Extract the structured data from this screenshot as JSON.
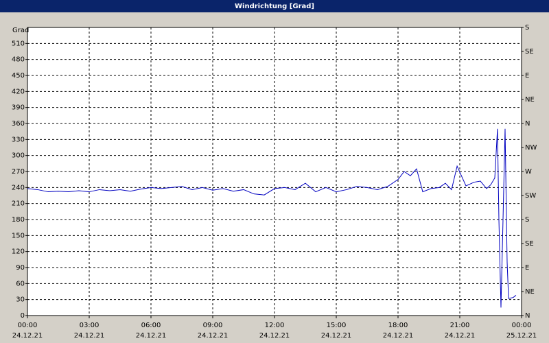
{
  "chart_data": {
    "type": "line",
    "title": "Windrichtung [Grad]",
    "y_axis_label": "Grad",
    "x": [
      0,
      0.5,
      1,
      1.5,
      2,
      2.5,
      3,
      3.5,
      4,
      4.5,
      5,
      5.5,
      6,
      6.5,
      7,
      7.5,
      8,
      8.5,
      9,
      9.5,
      10,
      10.5,
      11,
      11.5,
      12,
      12.5,
      13,
      13.5,
      14,
      14.5,
      15,
      15.5,
      16,
      16.5,
      17,
      17.5,
      18,
      18.3,
      18.6,
      18.9,
      19.2,
      19.6,
      20,
      20.3,
      20.6,
      20.87,
      21.3,
      21.7,
      22,
      22.3,
      22.5,
      22.7,
      22.83,
      22.9,
      23,
      23.1,
      23.2,
      23.3,
      23.37,
      23.6,
      23.73
    ],
    "series": [
      {
        "name": "Windrichtung",
        "color": "#0000c0",
        "values": [
          238,
          236,
          232,
          233,
          232,
          234,
          232,
          236,
          234,
          236,
          233,
          237,
          240,
          238,
          240,
          242,
          236,
          240,
          235,
          238,
          233,
          236,
          228,
          226,
          238,
          240,
          236,
          248,
          232,
          240,
          232,
          236,
          242,
          240,
          236,
          242,
          255,
          270,
          262,
          275,
          232,
          238,
          240,
          248,
          236,
          280,
          243,
          250,
          252,
          238,
          245,
          258,
          350,
          180,
          15,
          180,
          350,
          100,
          32,
          34,
          38
        ]
      }
    ],
    "xlim": [
      0,
      24
    ],
    "xticks": [
      {
        "value": 0,
        "label": "00:00"
      },
      {
        "value": 3,
        "label": "03:00"
      },
      {
        "value": 6,
        "label": "06:00"
      },
      {
        "value": 9,
        "label": "09:00"
      },
      {
        "value": 12,
        "label": "12:00"
      },
      {
        "value": 15,
        "label": "15:00"
      },
      {
        "value": 18,
        "label": "18:00"
      },
      {
        "value": 21,
        "label": "21:00"
      },
      {
        "value": 24,
        "label": "00:00"
      }
    ],
    "xtick_dates": [
      "24.12.21",
      "24.12.21",
      "24.12.21",
      "24.12.21",
      "24.12.21",
      "24.12.21",
      "24.12.21",
      "24.12.21",
      "25.12.21"
    ],
    "ylim": [
      0,
      540
    ],
    "yticks": [
      0,
      30,
      60,
      90,
      120,
      150,
      180,
      210,
      240,
      270,
      300,
      330,
      360,
      390,
      420,
      450,
      480,
      510
    ],
    "y2ticks": [
      {
        "value": 0,
        "label": "N"
      },
      {
        "value": 45,
        "label": "NE"
      },
      {
        "value": 90,
        "label": "E"
      },
      {
        "value": 135,
        "label": "SE"
      },
      {
        "value": 180,
        "label": "S"
      },
      {
        "value": 225,
        "label": "SW"
      },
      {
        "value": 270,
        "label": "W"
      },
      {
        "value": 315,
        "label": "NW"
      },
      {
        "value": 360,
        "label": "N"
      },
      {
        "value": 405,
        "label": "NE"
      },
      {
        "value": 450,
        "label": "E"
      },
      {
        "value": 495,
        "label": "SE"
      },
      {
        "value": 540,
        "label": "S"
      }
    ],
    "grid": true
  }
}
